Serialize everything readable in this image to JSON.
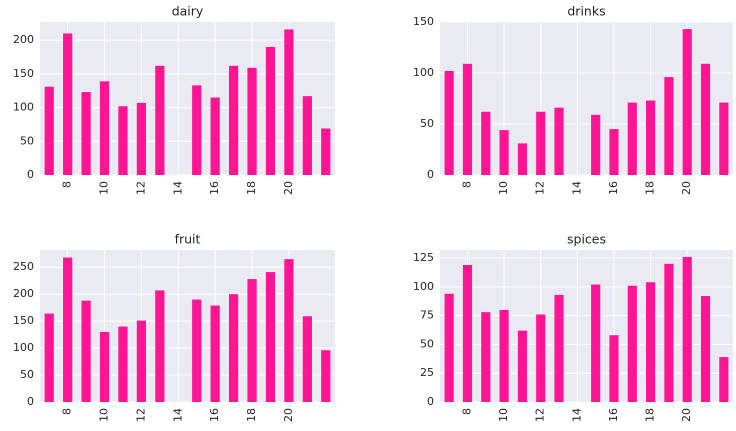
{
  "chart_data": [
    {
      "type": "bar",
      "title": "dairy",
      "color": "#ff1493",
      "grid": true,
      "categories": [
        null,
        "8",
        null,
        "10",
        null,
        "12",
        null,
        "14",
        null,
        "16",
        null,
        "18",
        null,
        "20",
        null,
        null
      ],
      "values": [
        131,
        210,
        123,
        139,
        102,
        107,
        162,
        null,
        133,
        115,
        162,
        159,
        190,
        216,
        117,
        69
      ],
      "ylim": [
        0,
        227
      ],
      "yticks": [
        0,
        50,
        100,
        150,
        200
      ]
    },
    {
      "type": "bar",
      "title": "drinks",
      "color": "#ff1493",
      "grid": true,
      "categories": [
        null,
        "8",
        null,
        "10",
        null,
        "12",
        null,
        "14",
        null,
        "16",
        null,
        "18",
        null,
        "20",
        null,
        null
      ],
      "values": [
        102,
        109,
        62,
        44,
        31,
        62,
        66,
        null,
        59,
        45,
        71,
        73,
        96,
        143,
        109,
        71
      ],
      "ylim": [
        0,
        150
      ],
      "yticks": [
        0,
        50,
        100,
        150
      ]
    },
    {
      "type": "bar",
      "title": "fruit",
      "color": "#ff1493",
      "grid": true,
      "categories": [
        null,
        "8",
        null,
        "10",
        null,
        "12",
        null,
        "14",
        null,
        "16",
        null,
        "18",
        null,
        "20",
        null,
        null
      ],
      "values": [
        164,
        268,
        188,
        130,
        140,
        151,
        207,
        null,
        190,
        179,
        200,
        228,
        241,
        265,
        159,
        96
      ],
      "ylim": [
        0,
        282
      ],
      "yticks": [
        0,
        50,
        100,
        150,
        200,
        250
      ]
    },
    {
      "type": "bar",
      "title": "spices",
      "color": "#ff1493",
      "grid": true,
      "categories": [
        null,
        "8",
        null,
        "10",
        null,
        "12",
        null,
        "14",
        null,
        "16",
        null,
        "18",
        null,
        "20",
        null,
        null
      ],
      "values": [
        94,
        119,
        78,
        80,
        62,
        76,
        93,
        null,
        102,
        58,
        101,
        104,
        120,
        126,
        92,
        39
      ],
      "ylim": [
        0,
        132
      ],
      "yticks": [
        0,
        25,
        50,
        75,
        100,
        125
      ]
    }
  ]
}
